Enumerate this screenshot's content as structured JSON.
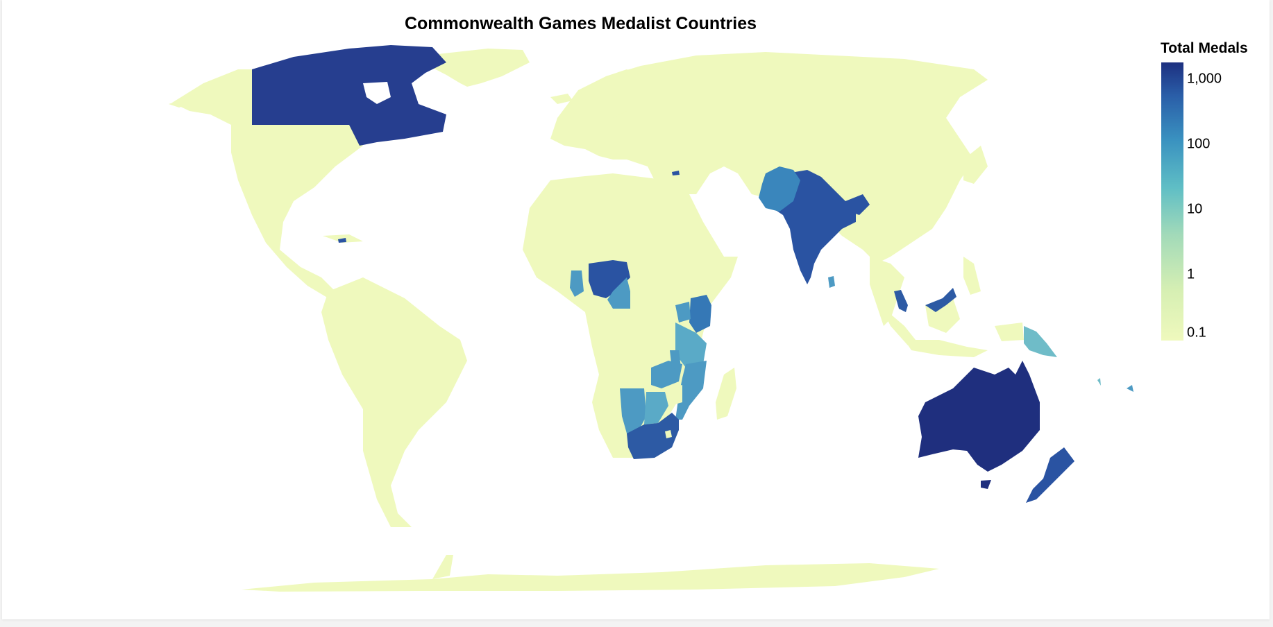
{
  "title": "Commonwealth Games Medalist Countries",
  "legend": {
    "title": "Total Medals",
    "scale": "log",
    "ticks": [
      "1,000",
      "100",
      "10",
      "1",
      "0.1"
    ],
    "colors": [
      "#eff9bd",
      "#a2dab9",
      "#5fbec5",
      "#3a92c0",
      "#2a5ea8",
      "#1d3080"
    ]
  },
  "colors": {
    "land": "#eff9bd",
    "water": "#ffffff",
    "tier_1000": "#263e8f",
    "tier_australia": "#1f2f7e",
    "tier_300": "#2a53a2",
    "tier_100": "#3578b6",
    "tier_30": "#4d9ac3",
    "tier_10": "#6fbcc8"
  }
}
